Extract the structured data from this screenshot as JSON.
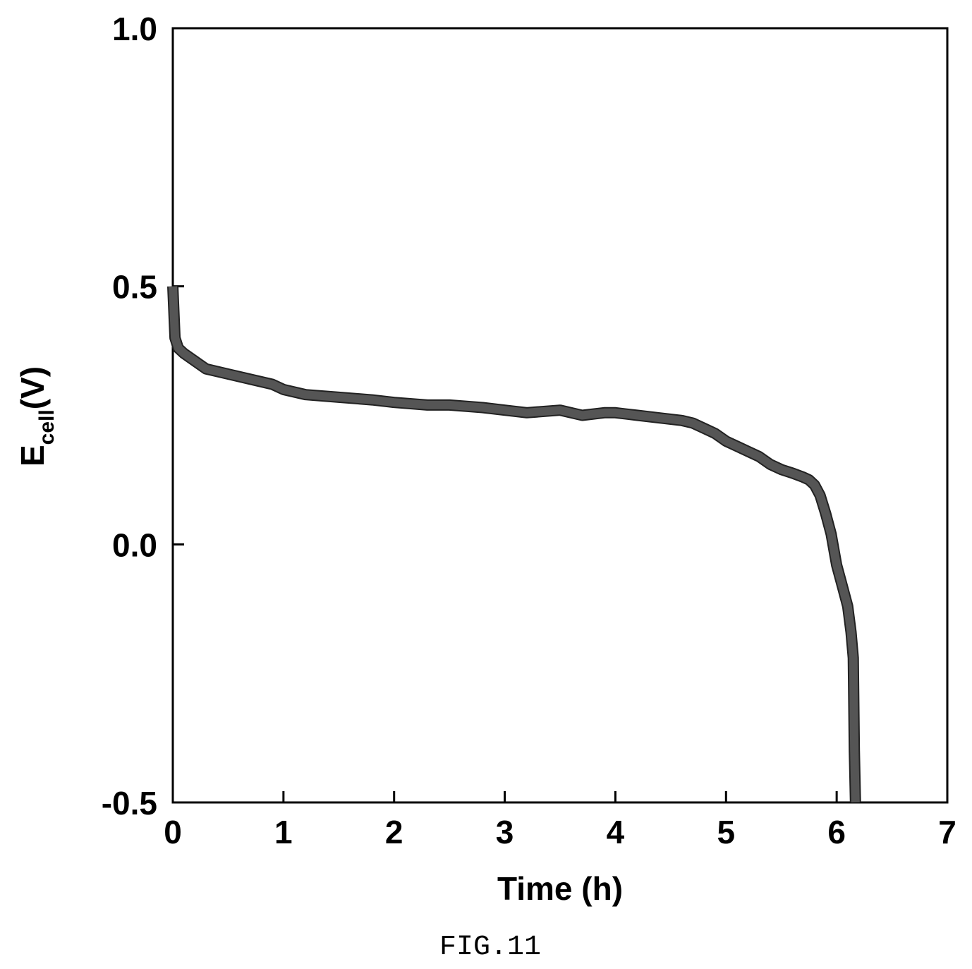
{
  "chart_data": {
    "type": "line",
    "title": "",
    "xlabel": "Time (h)",
    "ylabel": {
      "main": "E",
      "subscript": "cell",
      "suffix": "(V)"
    },
    "xlim": [
      0,
      7
    ],
    "ylim": [
      -0.5,
      1.0
    ],
    "xticks": [
      0,
      1,
      2,
      3,
      4,
      5,
      6,
      7
    ],
    "xtick_labels": [
      "0",
      "1",
      "2",
      "3",
      "4",
      "5",
      "6",
      "7"
    ],
    "yticks": [
      -0.5,
      0.0,
      0.5,
      1.0
    ],
    "ytick_labels": [
      "-0.5",
      "0.0",
      "0.5",
      "1.0"
    ],
    "grid": false,
    "series": [
      {
        "color": "#555555",
        "x": [
          0.0,
          0.02,
          0.05,
          0.1,
          0.2,
          0.3,
          0.5,
          0.7,
          0.9,
          1.0,
          1.2,
          1.5,
          1.8,
          2.0,
          2.3,
          2.5,
          2.8,
          3.0,
          3.2,
          3.5,
          3.7,
          3.9,
          4.0,
          4.2,
          4.4,
          4.6,
          4.7,
          4.8,
          4.9,
          5.0,
          5.1,
          5.2,
          5.3,
          5.4,
          5.5,
          5.6,
          5.7,
          5.75,
          5.8,
          5.85,
          5.9,
          5.95,
          6.0,
          6.05,
          6.1,
          6.13,
          6.15,
          6.16,
          6.17
        ],
        "y": [
          0.5,
          0.4,
          0.38,
          0.37,
          0.355,
          0.34,
          0.33,
          0.32,
          0.31,
          0.3,
          0.29,
          0.285,
          0.28,
          0.275,
          0.27,
          0.27,
          0.265,
          0.26,
          0.255,
          0.26,
          0.25,
          0.255,
          0.255,
          0.25,
          0.245,
          0.24,
          0.235,
          0.225,
          0.215,
          0.2,
          0.19,
          0.18,
          0.17,
          0.155,
          0.145,
          0.138,
          0.13,
          0.125,
          0.115,
          0.095,
          0.06,
          0.02,
          -0.04,
          -0.08,
          -0.12,
          -0.17,
          -0.22,
          -0.4,
          -0.5
        ]
      }
    ]
  },
  "caption": "FIG.11"
}
